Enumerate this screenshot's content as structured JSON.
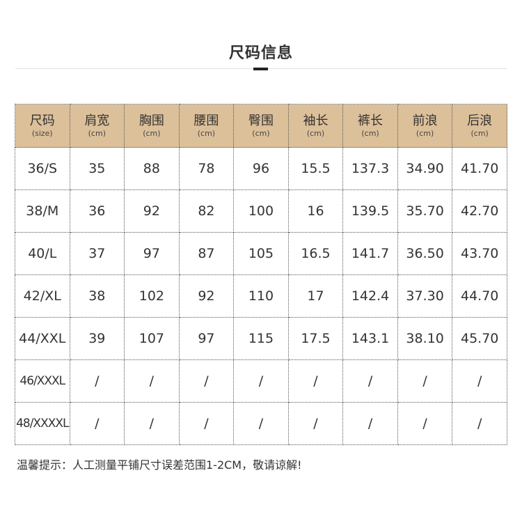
{
  "title": "尺码信息",
  "header_color": "#dcc09a",
  "columns": [
    {
      "label": "尺码",
      "unit": "(size)"
    },
    {
      "label": "肩宽",
      "unit": "(cm)"
    },
    {
      "label": "胸围",
      "unit": "(cm)"
    },
    {
      "label": "腰围",
      "unit": "(cm)"
    },
    {
      "label": "臀围",
      "unit": "(cm)"
    },
    {
      "label": "袖长",
      "unit": "(cm)"
    },
    {
      "label": "裤长",
      "unit": "(cm)"
    },
    {
      "label": "前浪",
      "unit": "(cm)"
    },
    {
      "label": "后浪",
      "unit": "(cm)"
    }
  ],
  "rows": [
    [
      "36/S",
      "35",
      "88",
      "78",
      "96",
      "15.5",
      "137.3",
      "34.90",
      "41.70"
    ],
    [
      "38/M",
      "36",
      "92",
      "82",
      "100",
      "16",
      "139.5",
      "35.70",
      "42.70"
    ],
    [
      "40/L",
      "37",
      "97",
      "87",
      "105",
      "16.5",
      "141.7",
      "36.50",
      "43.70"
    ],
    [
      "42/XL",
      "38",
      "102",
      "92",
      "110",
      "17",
      "142.4",
      "37.30",
      "44.70"
    ],
    [
      "44/XXL",
      "39",
      "107",
      "97",
      "115",
      "17.5",
      "143.1",
      "38.10",
      "45.70"
    ],
    [
      "46/XXXL",
      "/",
      "/",
      "/",
      "/",
      "/",
      "/",
      "/",
      "/"
    ],
    [
      "48/XXXXL",
      "/",
      "/",
      "/",
      "/",
      "/",
      "/",
      "/",
      "/"
    ]
  ],
  "note": "温馨提示：人工测量平铺尺寸误差范围1-2CM，敬请谅解!"
}
